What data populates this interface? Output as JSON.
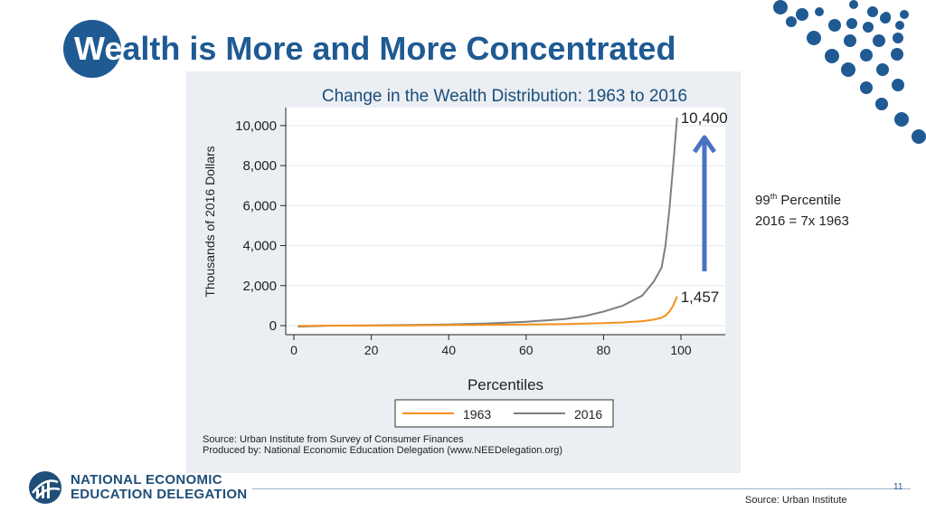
{
  "slide": {
    "title_lead": "We",
    "title_rest": "alth is More and More Concentrated",
    "annotation_sup_num": "99",
    "annotation_sup": "th",
    "annotation_line1_tail": " Percentile",
    "annotation_line2": "2016 = 7x 1963",
    "logo_line1": "NATIONAL ECONOMIC",
    "logo_line2": "EDUCATION DELEGATION",
    "page_number": "11",
    "footer_source": "Source: Urban Institute",
    "colors": {
      "brand_blue": "#1f5a93",
      "arrow_blue": "#4a72c4"
    }
  },
  "chart_data": {
    "type": "line",
    "title": "Change in the Wealth Distribution: 1963 to 2016",
    "xlabel": "Percentiles",
    "ylabel": "Thousands of 2016 Dollars",
    "xlim": [
      0,
      100
    ],
    "ylim": [
      0,
      10400
    ],
    "xticks": [
      0,
      20,
      40,
      60,
      80,
      100
    ],
    "ytick_values": [
      0,
      2000,
      4000,
      6000,
      8000,
      10000
    ],
    "ytick_labels": [
      "0",
      "2,000",
      "4,000",
      "6,000",
      "8,000",
      "10,000"
    ],
    "xtick_labels": [
      "0",
      "20",
      "40",
      "60",
      "80",
      "100"
    ],
    "series": [
      {
        "name": "1963",
        "color": "#f5901e",
        "x": [
          1,
          10,
          20,
          30,
          40,
          50,
          60,
          70,
          80,
          85,
          90,
          93,
          95,
          96,
          97,
          98,
          99
        ],
        "y": [
          -20,
          0,
          5,
          15,
          25,
          40,
          60,
          80,
          120,
          160,
          220,
          300,
          400,
          500,
          700,
          1000,
          1457
        ]
      },
      {
        "name": "2016",
        "color": "#7f7f7f",
        "x": [
          1,
          10,
          20,
          30,
          40,
          50,
          60,
          70,
          75,
          80,
          85,
          90,
          93,
          95,
          96,
          97,
          98,
          99
        ],
        "y": [
          -50,
          0,
          10,
          30,
          60,
          110,
          190,
          330,
          470,
          700,
          1000,
          1500,
          2200,
          2900,
          4000,
          5800,
          8000,
          10400
        ]
      }
    ],
    "annotations": [
      {
        "text": "10,400",
        "x": 99,
        "y": 10400
      },
      {
        "text": "1,457",
        "x": 99,
        "y": 1457
      }
    ],
    "legend_position": "bottom",
    "source_lines": [
      "Source: Urban Institute from Survey of Consumer Finances",
      "Produced by: National Economic Education Delegation (www.NEEDelegation.org)"
    ]
  }
}
